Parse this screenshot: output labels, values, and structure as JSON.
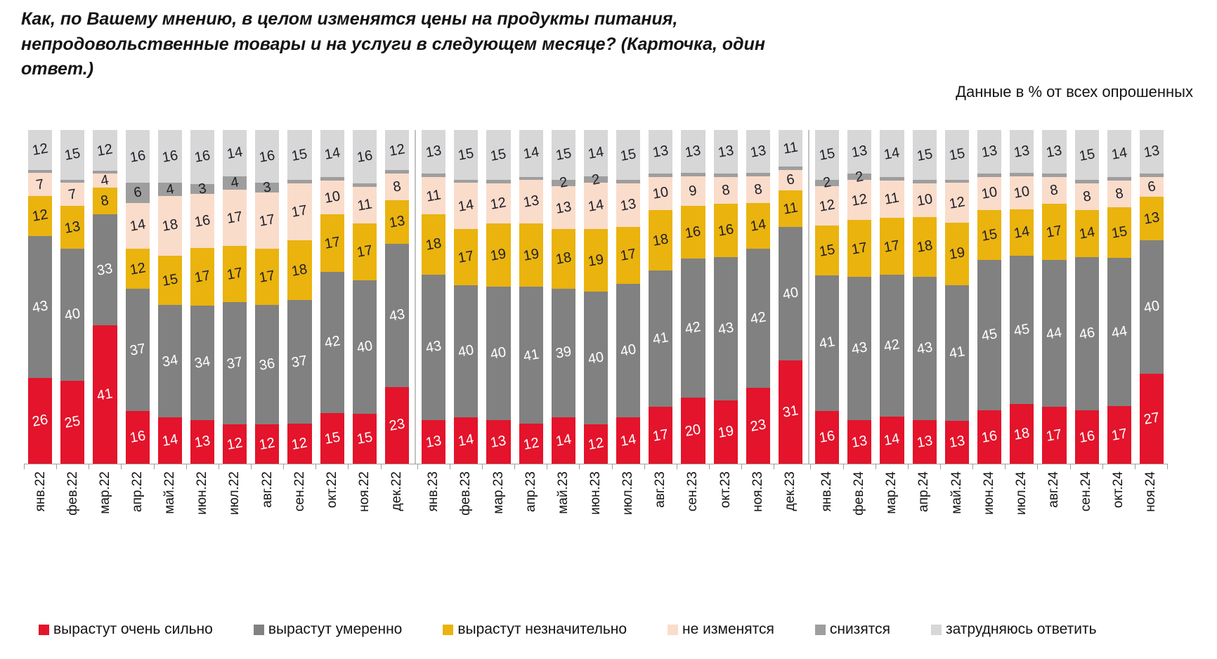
{
  "title": "Как, по Вашему мнению, в целом изменятся цены на продукты питания, непродовольственные товары и на услуги в следующем месяце? (Карточка, один ответ.)",
  "subtitle": "Данные в % от всех опрошенных",
  "colors": {
    "grow_strong": "#e3142b",
    "grow_moderate": "#818181",
    "grow_slight": "#eab30e",
    "no_change": "#fadccb",
    "decrease": "#9e9e9e",
    "hard_to_say": "#d7d7d7",
    "axis": "#a0a0a0",
    "year_separator": "#c3c3c3",
    "label_dark": "#1e1e28",
    "label_light": "#ffffff"
  },
  "legend": [
    {
      "label": "вырастут очень сильно",
      "color": "#e3142b"
    },
    {
      "label": "вырастут умеренно",
      "color": "#818181"
    },
    {
      "label": "вырастут незначительно",
      "color": "#eab30e"
    },
    {
      "label": "не изменятся",
      "color": "#fadccb"
    },
    {
      "label": "снизятся",
      "color": "#9e9e9e"
    },
    {
      "label": "затрудняюсь ответить",
      "color": "#d7d7d7"
    }
  ],
  "chart_data": {
    "type": "bar",
    "stacked": true,
    "unit": "% от всех опрошенных",
    "ylim": [
      0,
      100
    ],
    "label_min_value": 2,
    "grid": false,
    "legend_position": "bottom",
    "categories": [
      "янв.22",
      "фев.22",
      "мар.22",
      "апр.22",
      "май.22",
      "июн.22",
      "июл.22",
      "авг.22",
      "сен.22",
      "окт.22",
      "ноя.22",
      "дек.22",
      "янв.23",
      "фев.23",
      "мар.23",
      "апр.23",
      "май.23",
      "июн.23",
      "июл.23",
      "авг.23",
      "сен.23",
      "окт.23",
      "ноя.23",
      "дек.23",
      "янв.24",
      "фев.24",
      "мар.24",
      "апр.24",
      "май.24",
      "июн.24",
      "июл.24",
      "авг.24",
      "сен.24",
      "окт.24",
      "ноя.24"
    ],
    "year_break_before_indices": [
      12,
      24
    ],
    "series": [
      {
        "key": "grow_strong",
        "name": "вырастут очень сильно",
        "color": "#e3142b",
        "label_color": "light",
        "values": [
          26,
          25,
          41,
          16,
          14,
          13,
          12,
          12,
          12,
          15,
          15,
          23,
          13,
          14,
          13,
          12,
          14,
          12,
          14,
          17,
          20,
          19,
          23,
          31,
          16,
          13,
          14,
          13,
          13,
          16,
          18,
          17,
          16,
          17,
          27
        ]
      },
      {
        "key": "grow_moderate",
        "name": "вырастут умеренно",
        "color": "#818181",
        "label_color": "light",
        "values": [
          43,
          40,
          33,
          37,
          34,
          34,
          37,
          36,
          37,
          42,
          40,
          43,
          43,
          40,
          40,
          41,
          39,
          40,
          40,
          41,
          42,
          43,
          42,
          40,
          41,
          43,
          42,
          43,
          41,
          45,
          45,
          44,
          46,
          44,
          40
        ]
      },
      {
        "key": "grow_slight",
        "name": "вырастут незначительно",
        "color": "#eab30e",
        "label_color": "dark",
        "values": [
          12,
          13,
          8,
          12,
          15,
          17,
          17,
          17,
          18,
          17,
          17,
          13,
          18,
          17,
          19,
          19,
          18,
          19,
          17,
          18,
          16,
          16,
          14,
          11,
          15,
          17,
          17,
          18,
          19,
          15,
          14,
          17,
          14,
          15,
          13
        ]
      },
      {
        "key": "no_change",
        "name": "не изменятся",
        "color": "#fadccb",
        "label_color": "dark",
        "values": [
          7,
          7,
          4,
          14,
          18,
          16,
          17,
          17,
          17,
          10,
          11,
          8,
          11,
          14,
          12,
          13,
          13,
          14,
          13,
          10,
          9,
          8,
          8,
          6,
          12,
          12,
          11,
          10,
          12,
          10,
          10,
          8,
          8,
          8,
          6
        ]
      },
      {
        "key": "decrease",
        "name": "снизятся",
        "color": "#9e9e9e",
        "label_color": "dark",
        "values": [
          1,
          1,
          1,
          6,
          4,
          3,
          4,
          3,
          1,
          1,
          1,
          1,
          1,
          1,
          1,
          1,
          2,
          2,
          1,
          1,
          1,
          1,
          1,
          1,
          2,
          2,
          1,
          1,
          1,
          1,
          1,
          1,
          1,
          1,
          1
        ]
      },
      {
        "key": "hard_to_say",
        "name": "затрудняюсь ответить",
        "color": "#d7d7d7",
        "label_color": "dark",
        "values": [
          12,
          15,
          12,
          16,
          16,
          16,
          14,
          16,
          15,
          14,
          16,
          12,
          13,
          15,
          15,
          14,
          15,
          14,
          15,
          13,
          13,
          13,
          13,
          11,
          15,
          13,
          14,
          15,
          15,
          13,
          13,
          13,
          15,
          14,
          13
        ]
      }
    ]
  }
}
